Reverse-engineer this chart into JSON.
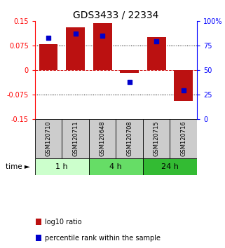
{
  "title": "GDS3433 / 22334",
  "samples": [
    "GSM120710",
    "GSM120711",
    "GSM120648",
    "GSM120708",
    "GSM120715",
    "GSM120716"
  ],
  "log10_ratio": [
    0.079,
    0.13,
    0.143,
    -0.008,
    0.1,
    -0.095
  ],
  "percentile_rank": [
    83,
    87,
    85,
    38,
    79,
    29
  ],
  "ylim_left": [
    -0.15,
    0.15
  ],
  "ylim_right": [
    0,
    100
  ],
  "yticks_left": [
    -0.15,
    -0.075,
    0,
    0.075,
    0.15
  ],
  "yticks_right": [
    0,
    25,
    50,
    75,
    100
  ],
  "ytick_labels_right": [
    "0",
    "25",
    "50",
    "75",
    "100%"
  ],
  "hline_dotted": [
    0.075,
    -0.075
  ],
  "bar_color": "#bb1111",
  "dot_color": "#0000cc",
  "time_groups": [
    {
      "label": "1 h",
      "start": 0,
      "end": 2,
      "color": "#ccffcc"
    },
    {
      "label": "4 h",
      "start": 2,
      "end": 4,
      "color": "#66dd66"
    },
    {
      "label": "24 h",
      "start": 4,
      "end": 6,
      "color": "#33bb33"
    }
  ],
  "legend_items": [
    {
      "label": "log10 ratio",
      "color": "#bb1111"
    },
    {
      "label": "percentile rank within the sample",
      "color": "#0000cc"
    }
  ],
  "bg_color": "#ffffff",
  "sample_box_color": "#cccccc",
  "bar_width": 0.7,
  "dot_size": 18,
  "title_fontsize": 10,
  "tick_fontsize": 7,
  "sample_label_fontsize": 6,
  "time_label_fontsize": 8,
  "legend_fontsize": 7
}
